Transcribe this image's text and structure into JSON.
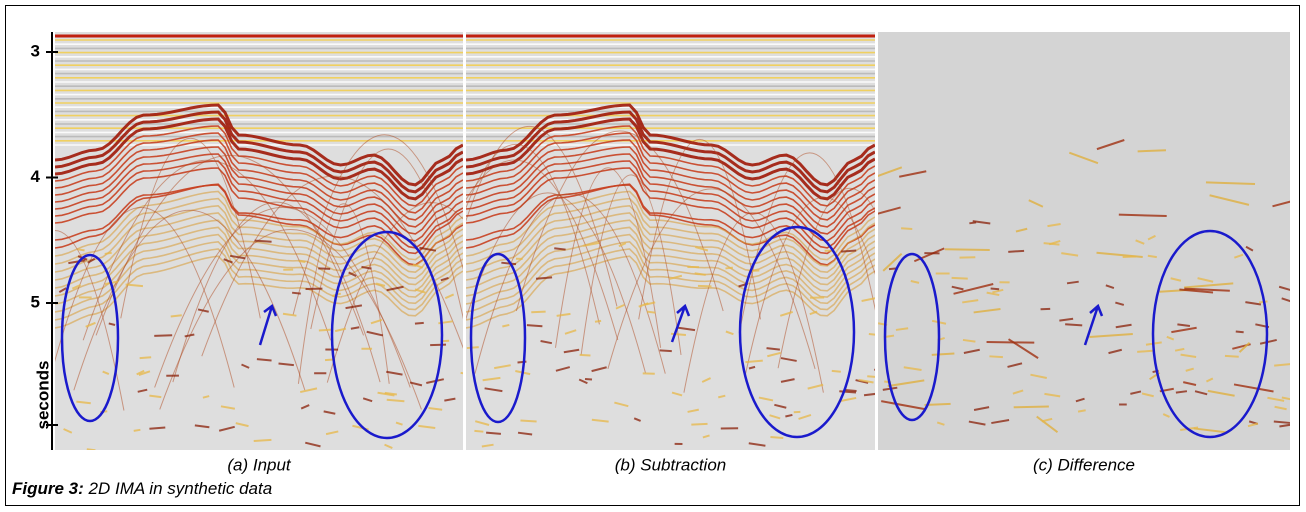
{
  "figure": {
    "label": "Figure 3:",
    "caption": "2D IMA in synthetic data",
    "axis": {
      "label": "seconds",
      "ticks": [
        3,
        4,
        5
      ]
    },
    "panels": [
      {
        "caption": "(a) Input"
      },
      {
        "caption": "(b) Subtraction"
      },
      {
        "caption": "(c) Difference"
      }
    ]
  }
}
